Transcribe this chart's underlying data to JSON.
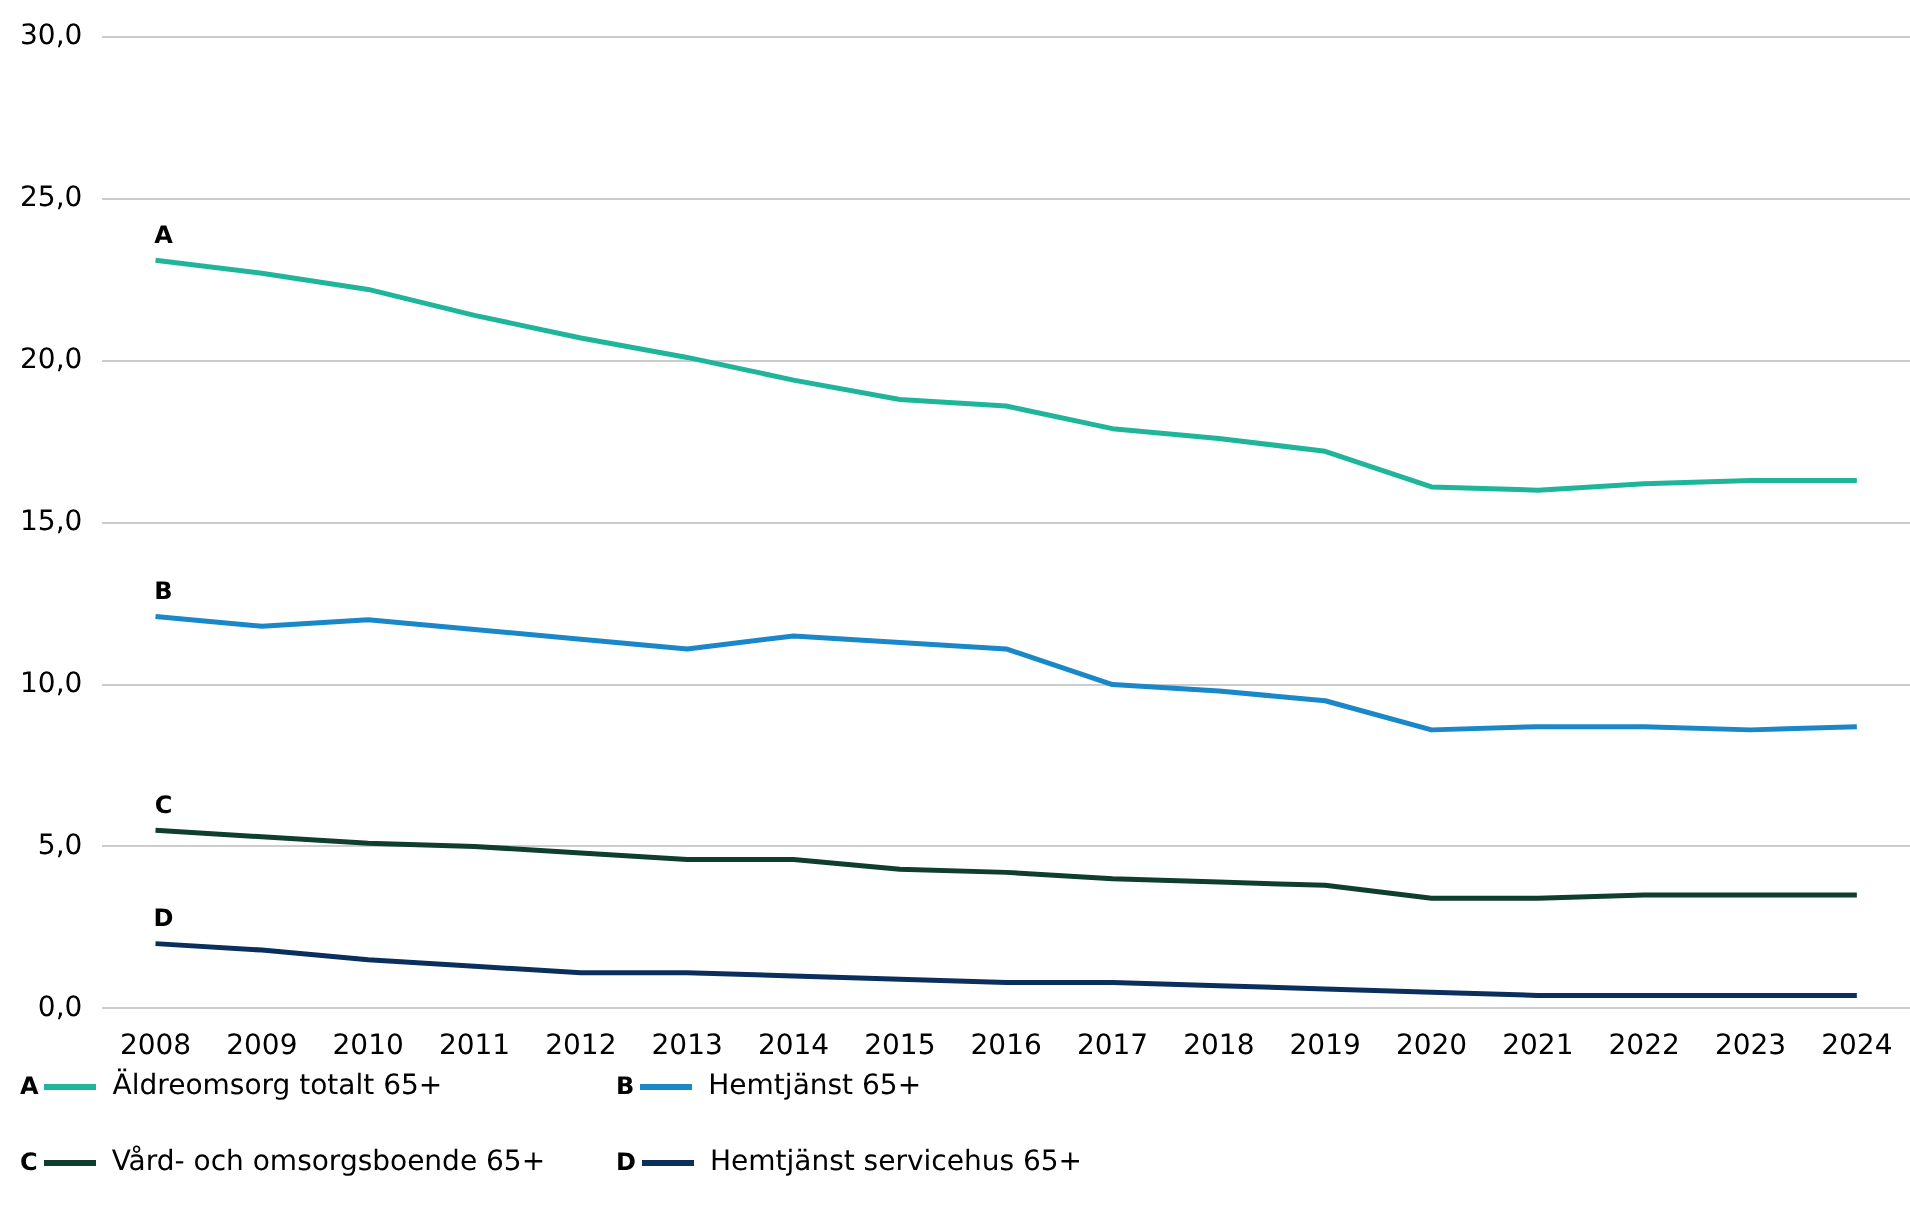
{
  "chart_data": {
    "type": "line",
    "categories": [
      "2008",
      "2009",
      "2010",
      "2011",
      "2012",
      "2013",
      "2014",
      "2015",
      "2016",
      "2017",
      "2018",
      "2019",
      "2020",
      "2021",
      "2022",
      "2023",
      "2024"
    ],
    "series": [
      {
        "name": "Äldreomsorg totalt 65+",
        "color": "#1fb59a",
        "values": [
          23.1,
          22.7,
          22.2,
          21.4,
          20.7,
          20.1,
          19.4,
          18.8,
          18.6,
          17.9,
          17.6,
          17.2,
          16.1,
          16.0,
          16.2,
          16.3,
          16.3
        ]
      },
      {
        "name": "Hemtjänst 65+",
        "color": "#1a87c9",
        "values": [
          12.1,
          11.8,
          12.0,
          11.7,
          11.4,
          11.1,
          11.5,
          11.3,
          11.1,
          10.0,
          9.8,
          9.5,
          8.6,
          8.7,
          8.7,
          8.6,
          8.7
        ]
      },
      {
        "name": "Vård- och omsorgsboende 65+",
        "color": "#0f3d2e",
        "values": [
          5.5,
          5.3,
          5.1,
          5.0,
          4.8,
          4.6,
          4.6,
          4.3,
          4.2,
          4.0,
          3.9,
          3.8,
          3.4,
          3.4,
          3.5,
          3.5,
          3.5
        ]
      },
      {
        "name": "Hemtjänst servicehus 65+",
        "color": "#0b2f5c",
        "values": [
          2.0,
          1.8,
          1.5,
          1.3,
          1.1,
          1.1,
          1.0,
          0.9,
          0.8,
          0.8,
          0.7,
          0.6,
          0.5,
          0.4,
          0.4,
          0.4,
          0.4
        ]
      }
    ],
    "annotations": [
      {
        "text": "A",
        "x": "2008",
        "y": 23.1
      },
      {
        "text": "B",
        "x": "2008",
        "y": 12.1
      },
      {
        "text": "C",
        "x": "2008",
        "y": 5.5
      },
      {
        "text": "D",
        "x": "2008",
        "y": 2.0
      }
    ],
    "ylim": [
      0,
      30
    ],
    "yticks": [
      {
        "value": 0,
        "label": "0,0"
      },
      {
        "value": 5,
        "label": "5,0"
      },
      {
        "value": 10,
        "label": "10,0"
      },
      {
        "value": 15,
        "label": "15,0"
      },
      {
        "value": 20,
        "label": "20,0"
      },
      {
        "value": 25,
        "label": "25,0"
      },
      {
        "value": 30,
        "label": "30,0"
      }
    ],
    "grid": "y",
    "legend": "bottom left",
    "marker": "none",
    "line_style": "solid"
  }
}
